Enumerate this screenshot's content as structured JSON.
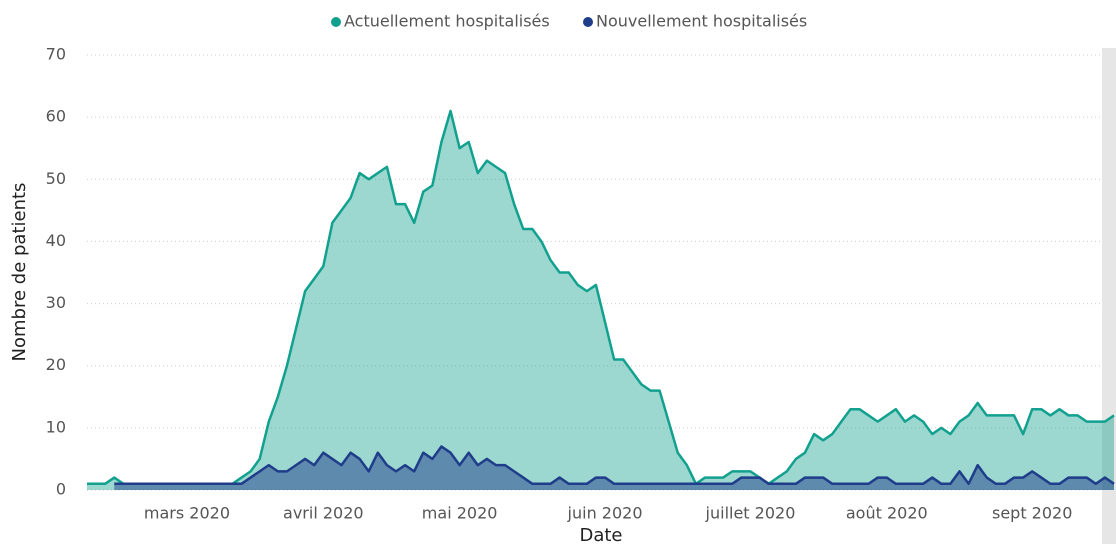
{
  "chart_data": {
    "type": "area",
    "x_label": "Date",
    "y_label": "Nombre de patients",
    "categories": [
      null,
      null,
      null,
      null,
      null,
      null,
      null,
      null,
      null,
      null,
      null,
      "mars 2020",
      null,
      null,
      null,
      null,
      null,
      null,
      null,
      null,
      null,
      null,
      null,
      null,
      null,
      null,
      "avril 2020",
      null,
      null,
      null,
      null,
      null,
      null,
      null,
      null,
      null,
      null,
      null,
      null,
      null,
      null,
      "mai 2020",
      null,
      null,
      null,
      null,
      null,
      null,
      null,
      null,
      null,
      null,
      null,
      null,
      null,
      null,
      null,
      "juin 2020",
      null,
      null,
      null,
      null,
      null,
      null,
      null,
      null,
      null,
      null,
      null,
      null,
      null,
      null,
      null,
      "juillet 2020",
      null,
      null,
      null,
      null,
      null,
      null,
      null,
      null,
      null,
      null,
      null,
      null,
      null,
      null,
      "août 2020",
      null,
      null,
      null,
      null,
      null,
      null,
      null,
      null,
      null,
      null,
      null,
      null,
      null,
      null,
      null,
      "sept 2020",
      null,
      null,
      null,
      null,
      null,
      null,
      null,
      null,
      null
    ],
    "series": [
      {
        "name": "Actuellement hospitalisés",
        "color": "#12a08f",
        "values": [
          1,
          1,
          1,
          2,
          1,
          1,
          1,
          1,
          1,
          1,
          1,
          1,
          1,
          1,
          1,
          1,
          1,
          2,
          3,
          5,
          11,
          15,
          20,
          26,
          32,
          34,
          36,
          43,
          45,
          47,
          51,
          50,
          51,
          52,
          46,
          46,
          43,
          48,
          49,
          56,
          61,
          55,
          56,
          51,
          53,
          52,
          51,
          46,
          42,
          42,
          40,
          37,
          35,
          35,
          33,
          32,
          33,
          27,
          21,
          21,
          19,
          17,
          16,
          16,
          11,
          6,
          4,
          1,
          2,
          2,
          2,
          3,
          3,
          3,
          2,
          1,
          2,
          3,
          5,
          6,
          9,
          8,
          9,
          11,
          13,
          13,
          12,
          11,
          12,
          13,
          11,
          12,
          11,
          9,
          10,
          9,
          11,
          12,
          14,
          12,
          12,
          12,
          12,
          9,
          13,
          13,
          12,
          13,
          12,
          12,
          11,
          11,
          11,
          12
        ]
      },
      {
        "name": "Nouvellement hospitalisés",
        "color": "#1f3d8a",
        "values": [
          null,
          null,
          null,
          1,
          1,
          1,
          1,
          1,
          1,
          1,
          1,
          1,
          1,
          1,
          1,
          1,
          1,
          1,
          2,
          3,
          4,
          3,
          3,
          4,
          5,
          4,
          6,
          5,
          4,
          6,
          5,
          3,
          6,
          4,
          3,
          4,
          3,
          6,
          5,
          7,
          6,
          4,
          6,
          4,
          5,
          4,
          4,
          3,
          2,
          1,
          1,
          1,
          2,
          1,
          1,
          1,
          2,
          2,
          1,
          1,
          1,
          1,
          1,
          1,
          1,
          1,
          1,
          1,
          1,
          1,
          1,
          1,
          2,
          2,
          2,
          1,
          1,
          1,
          1,
          2,
          2,
          2,
          1,
          1,
          1,
          1,
          1,
          2,
          2,
          1,
          1,
          1,
          1,
          2,
          1,
          1,
          3,
          1,
          4,
          2,
          1,
          1,
          2,
          2,
          3,
          2,
          1,
          1,
          2,
          2,
          2,
          1,
          2,
          1
        ]
      }
    ],
    "ylim": [
      0,
      70
    ],
    "yticks": [
      0,
      10,
      20,
      30,
      40,
      50,
      60,
      70
    ],
    "grid": true,
    "legend": "top"
  }
}
